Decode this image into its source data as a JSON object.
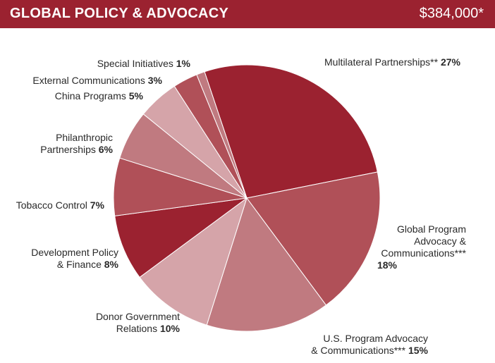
{
  "header": {
    "title": "GLOBAL POLICY & ADVOCACY",
    "total": "$384,000*"
  },
  "chart_data": {
    "type": "pie",
    "start": "top, clockwise",
    "slices": [
      {
        "label": "Multilateral Partnerships**",
        "value": 27,
        "pct_label": "27%",
        "color": "#9b2230"
      },
      {
        "label": "Global Program Advocacy & Communications***",
        "value": 18,
        "pct_label": "18%",
        "color": "#b05058"
      },
      {
        "label": "U.S. Program Advocacy & Communications***",
        "value": 15,
        "pct_label": "15%",
        "color": "#c07a80"
      },
      {
        "label": "Donor Government Relations",
        "value": 10,
        "pct_label": "10%",
        "color": "#d5a4a9"
      },
      {
        "label": "Development Policy & Finance",
        "value": 8,
        "pct_label": "8%",
        "color": "#9b2230"
      },
      {
        "label": "Tobacco Control",
        "value": 7,
        "pct_label": "7%",
        "color": "#b05058"
      },
      {
        "label": "Philanthropic Partnerships",
        "value": 6,
        "pct_label": "6%",
        "color": "#c07a80"
      },
      {
        "label": "China Programs",
        "value": 5,
        "pct_label": "5%",
        "color": "#d5a4a9"
      },
      {
        "label": "External Communications",
        "value": 3,
        "pct_label": "3%",
        "color": "#b05058"
      },
      {
        "label": "Special Initiatives",
        "value": 1,
        "pct_label": "1%",
        "color": "#c07a80"
      }
    ]
  },
  "labels": [
    {
      "lines": [
        "Multilateral Partnerships**"
      ],
      "pct": "27%"
    },
    {
      "lines": [
        "Global Program",
        "Advocacy &",
        "Communications***"
      ],
      "pct": "18%"
    },
    {
      "lines": [
        "U.S. Program Advocacy",
        "& Communications***"
      ],
      "pct": "15%"
    },
    {
      "lines": [
        "Donor Government",
        "Relations"
      ],
      "pct": "10%"
    },
    {
      "lines": [
        "Development Policy",
        "& Finance"
      ],
      "pct": "8%"
    },
    {
      "lines": [
        "Tobacco Control"
      ],
      "pct": "7%"
    },
    {
      "lines": [
        "Philanthropic",
        "Partnerships"
      ],
      "pct": "6%"
    },
    {
      "lines": [
        "China Programs"
      ],
      "pct": "5%"
    },
    {
      "lines": [
        "External Communications"
      ],
      "pct": "3%"
    },
    {
      "lines": [
        "Special Initiatives"
      ],
      "pct": "1%"
    }
  ]
}
